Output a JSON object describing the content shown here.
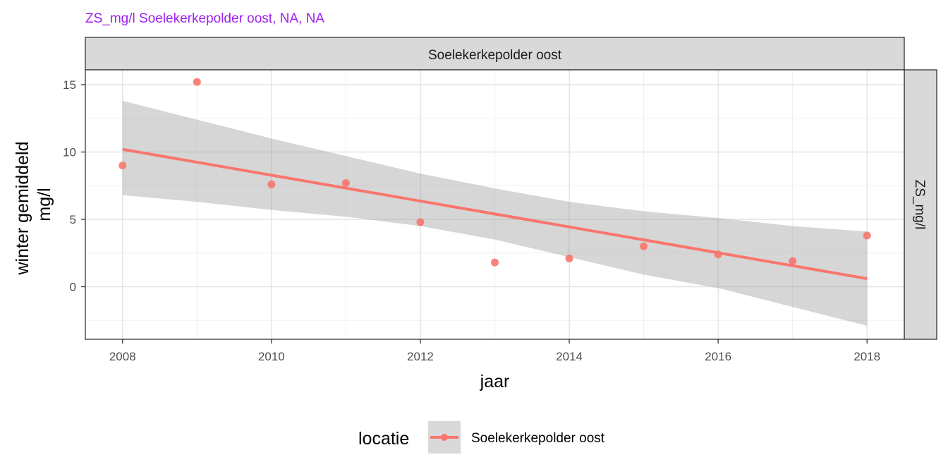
{
  "title": "ZS_mg/l Soelekerkepolder oost, NA, NA",
  "title_color": "#a020f0",
  "strip_top": "Soelekerkepolder oost",
  "strip_right": "ZS_mg/l",
  "chart_data": {
    "type": "scatter",
    "xlabel": "jaar",
    "ylabel_line1": "winter gemiddeld",
    "ylabel_line2": "mg/l",
    "xlim": [
      2007.5,
      2018.5
    ],
    "ylim": [
      -3.9,
      16.1
    ],
    "x_ticks": [
      2008,
      2010,
      2012,
      2014,
      2016,
      2018
    ],
    "y_ticks": [
      0,
      5,
      10,
      15
    ],
    "grid": true,
    "legend_position": "bottom",
    "legend_title": "locatie",
    "series": [
      {
        "name": "Soelekerkepolder oost",
        "color": "#f8766d",
        "x": [
          2008,
          2009,
          2010,
          2011,
          2012,
          2013,
          2014,
          2015,
          2016,
          2017,
          2018
        ],
        "y": [
          9.0,
          15.2,
          7.6,
          7.7,
          4.8,
          1.8,
          2.1,
          3.0,
          2.4,
          1.9,
          3.8
        ]
      }
    ],
    "trend": {
      "type": "linear",
      "x": [
        2008,
        2018
      ],
      "y": [
        10.2,
        0.6
      ],
      "ci_x": [
        2008,
        2009,
        2010,
        2011,
        2012,
        2013,
        2014,
        2015,
        2016,
        2017,
        2018
      ],
      "ci_upper": [
        13.8,
        12.4,
        11.0,
        9.7,
        8.4,
        7.3,
        6.3,
        5.6,
        5.1,
        4.5,
        4.1
      ],
      "ci_lower": [
        6.8,
        6.3,
        5.7,
        5.2,
        4.5,
        3.5,
        2.2,
        0.9,
        -0.1,
        -1.5,
        -2.9
      ],
      "ci_color": "#999999"
    }
  }
}
